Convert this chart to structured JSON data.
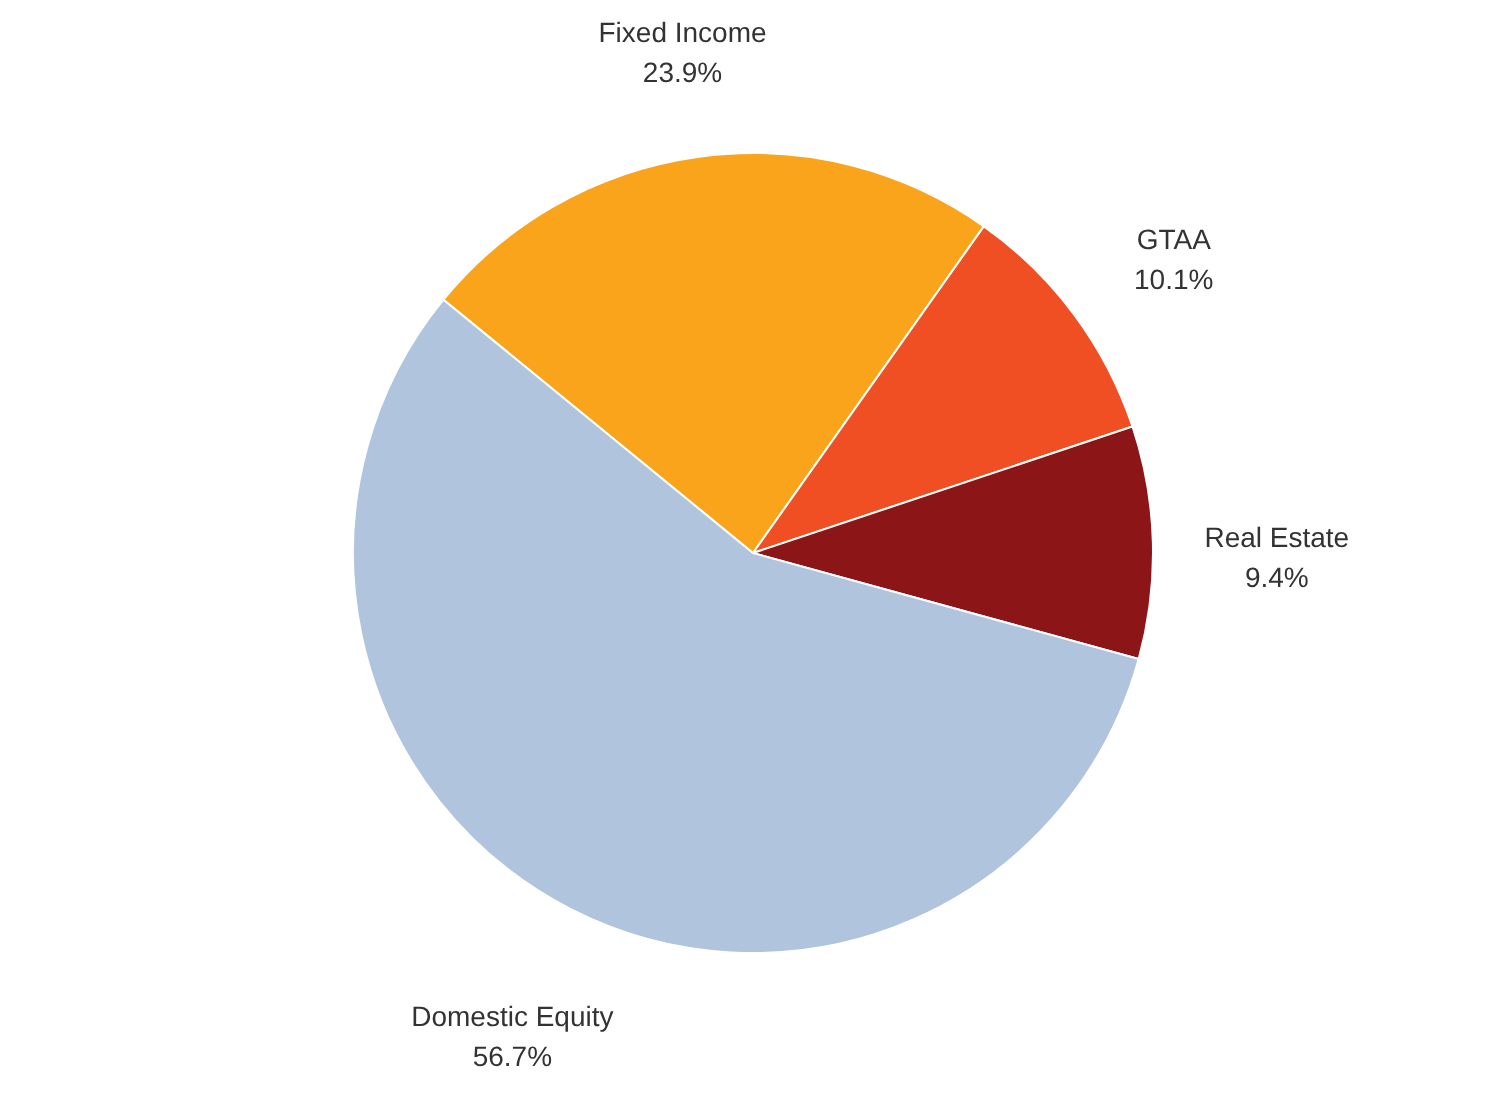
{
  "chart_data": {
    "type": "pie",
    "categories": [
      "Fixed Income",
      "GTAA",
      "Real Estate",
      "Domestic Equity"
    ],
    "values": [
      23.9,
      10.1,
      9.4,
      56.7
    ],
    "colors": [
      "#f9a41b",
      "#f04e23",
      "#8b1517",
      "#b0c4de"
    ],
    "value_labels": [
      "23.9%",
      "10.1%",
      "9.4%",
      "56.7%"
    ]
  }
}
